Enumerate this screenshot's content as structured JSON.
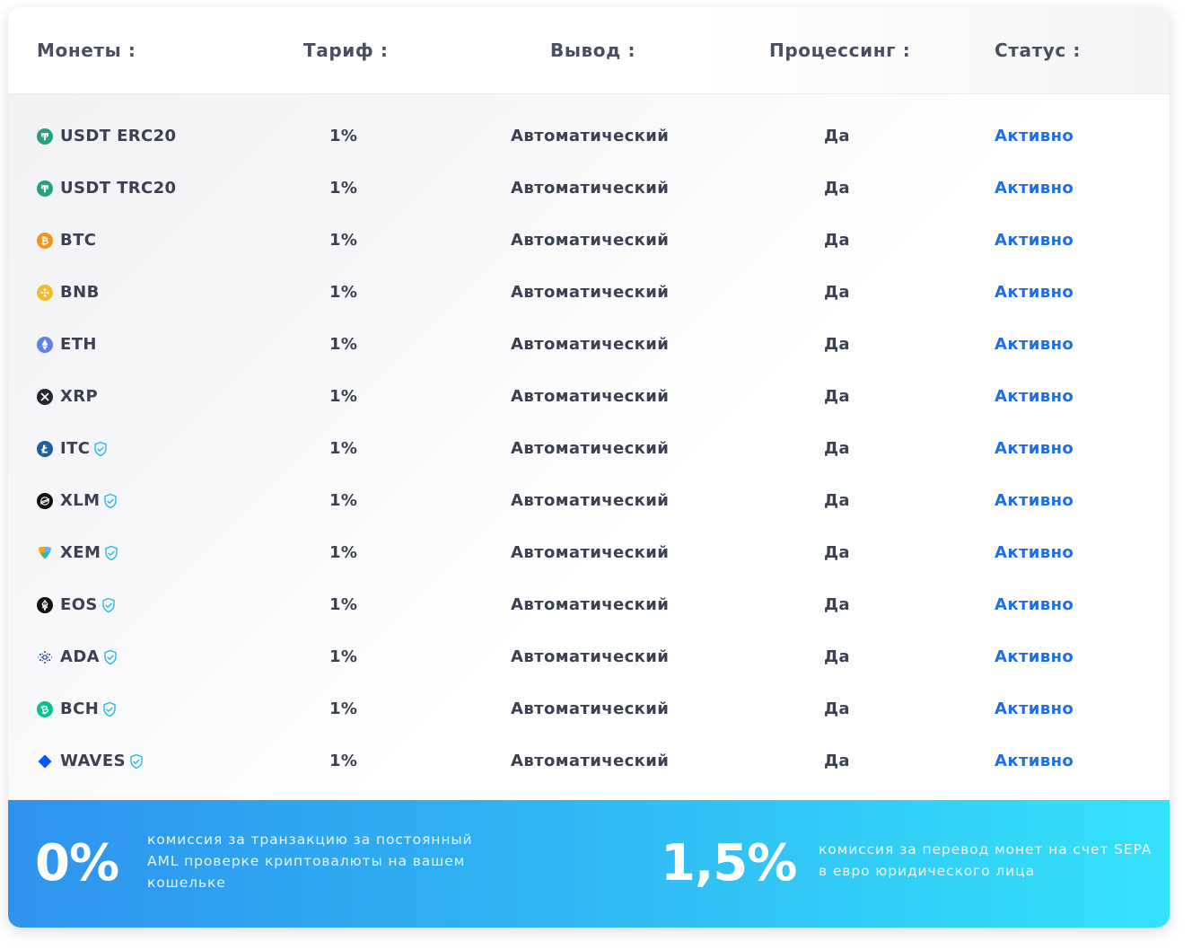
{
  "header": {
    "coins": "Монеты :",
    "tariff": "Тариф :",
    "withdrawal": "Вывод :",
    "processing": "Процессинг :",
    "status": "Статус :"
  },
  "rows": [
    {
      "coin": "USDT ERC20",
      "icon": "tether-icon",
      "aml": false,
      "rate": "1%",
      "withdrawal": "Автоматический",
      "processing": "Да",
      "status": "Активно"
    },
    {
      "coin": "USDT TRC20",
      "icon": "tether-icon",
      "aml": false,
      "rate": "1%",
      "withdrawal": "Автоматический",
      "processing": "Да",
      "status": "Активно"
    },
    {
      "coin": "BTC",
      "icon": "bitcoin-icon",
      "aml": false,
      "rate": "1%",
      "withdrawal": "Автоматический",
      "processing": "Да",
      "status": "Активно"
    },
    {
      "coin": "BNB",
      "icon": "bnb-icon",
      "aml": false,
      "rate": "1%",
      "withdrawal": "Автоматический",
      "processing": "Да",
      "status": "Активно"
    },
    {
      "coin": "ETH",
      "icon": "ethereum-icon",
      "aml": false,
      "rate": "1%",
      "withdrawal": "Автоматический",
      "processing": "Да",
      "status": "Активно"
    },
    {
      "coin": "XRP",
      "icon": "xrp-icon",
      "aml": false,
      "rate": "1%",
      "withdrawal": "Автоматический",
      "processing": "Да",
      "status": "Активно"
    },
    {
      "coin": "ITC",
      "icon": "litecoin-icon",
      "aml": true,
      "rate": "1%",
      "withdrawal": "Автоматический",
      "processing": "Да",
      "status": "Активно"
    },
    {
      "coin": "XLM",
      "icon": "stellar-icon",
      "aml": true,
      "rate": "1%",
      "withdrawal": "Автоматический",
      "processing": "Да",
      "status": "Активно"
    },
    {
      "coin": "XEM",
      "icon": "nem-icon",
      "aml": true,
      "rate": "1%",
      "withdrawal": "Автоматический",
      "processing": "Да",
      "status": "Активно"
    },
    {
      "coin": "EOS",
      "icon": "eos-icon",
      "aml": true,
      "rate": "1%",
      "withdrawal": "Автоматический",
      "processing": "Да",
      "status": "Активно"
    },
    {
      "coin": "ADA",
      "icon": "cardano-icon",
      "aml": true,
      "rate": "1%",
      "withdrawal": "Автоматический",
      "processing": "Да",
      "status": "Активно"
    },
    {
      "coin": "BCH",
      "icon": "bitcoin-cash-icon",
      "aml": true,
      "rate": "1%",
      "withdrawal": "Автоматический",
      "processing": "Да",
      "status": "Активно"
    },
    {
      "coin": "WAVES",
      "icon": "waves-icon",
      "aml": true,
      "rate": "1%",
      "withdrawal": "Автоматический",
      "processing": "Да",
      "status": "Активно"
    }
  ],
  "footer": {
    "left_value": "0%",
    "left_text": "комиссия за транзакцию за постоянный AML проверке криптовалюты на вашем кошельке",
    "right_value": "1,5%",
    "right_text": "комиссия за перевод монет на счет SEPA в евро юридического лица"
  },
  "colors": {
    "status_active": "#1f6fe0",
    "aml_shield": "#2bb6ea",
    "footer_gradient_start": "#2f93ee",
    "footer_gradient_end": "#35e2fa"
  }
}
